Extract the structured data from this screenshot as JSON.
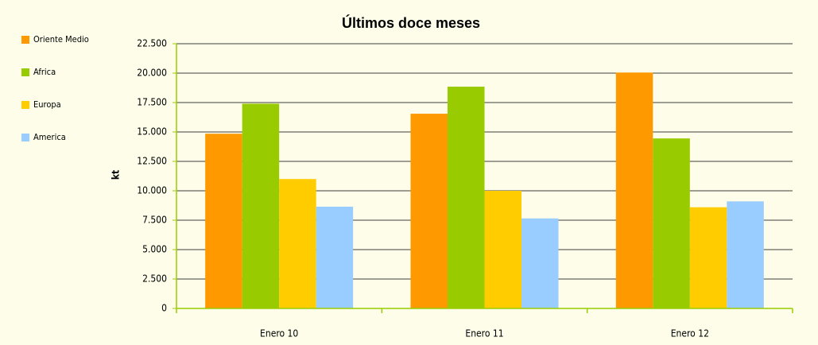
{
  "chart_data": {
    "type": "bar",
    "title": "Últimos doce meses",
    "y_label": "kt",
    "categories": [
      "Enero 10",
      "Enero 11",
      "Enero 12"
    ],
    "series": [
      {
        "name": "Oriente Medio",
        "color": "#ff9900",
        "values": [
          14850,
          16550,
          20050
        ]
      },
      {
        "name": "Africa",
        "color": "#99cc00",
        "values": [
          17400,
          18850,
          14450
        ]
      },
      {
        "name": "Europa",
        "color": "#ffcc00",
        "values": [
          11000,
          10000,
          8600
        ]
      },
      {
        "name": "America",
        "color": "#99ccff",
        "values": [
          8650,
          7650,
          9100
        ]
      }
    ],
    "ylim": [
      0,
      22500
    ],
    "yticks": [
      0,
      {
        "value": 2500,
        "label": "2.500"
      },
      {
        "value": 5000,
        "label": "5.000"
      },
      {
        "value": 7500,
        "label": "7.500"
      },
      {
        "value": 10000,
        "label": "10.000"
      },
      {
        "value": 12500,
        "label": "12.500"
      },
      {
        "value": 15000,
        "label": "15.000"
      },
      {
        "value": 17500,
        "label": "17.500"
      },
      {
        "value": 20000,
        "label": "20.000"
      },
      {
        "value": 22500,
        "label": "22.500"
      }
    ],
    "grid": true,
    "legend": "left"
  }
}
